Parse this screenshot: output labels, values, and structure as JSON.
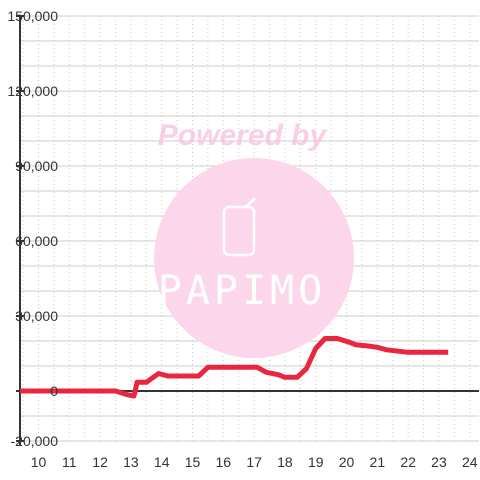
{
  "watermark": {
    "text": "Powered by",
    "brand": "PAPIMO"
  },
  "colors": {
    "line": "#e8263f",
    "axis": "#333333",
    "grid": "#cccccc",
    "watermark_circle": "#fcd6ea"
  },
  "chart_data": {
    "type": "line",
    "title": "",
    "xlabel": "",
    "ylabel": "",
    "xlim": [
      9.4,
      24.3
    ],
    "ylim": [
      -20000,
      150000
    ],
    "grid": true,
    "x_ticks": [
      10,
      11,
      12,
      13,
      14,
      15,
      16,
      17,
      18,
      19,
      20,
      21,
      22,
      23,
      24
    ],
    "y_ticks": [
      -20000,
      0,
      30000,
      60000,
      90000,
      120000,
      150000
    ],
    "x_tick_labels": [
      "10",
      "11",
      "12",
      "13",
      "14",
      "15",
      "16",
      "17",
      "18",
      "19",
      "20",
      "21",
      "22",
      "23",
      "24"
    ],
    "y_tick_labels": [
      "-20,000",
      "0",
      "30,000",
      "60,000",
      "90,000",
      "120,000",
      "150,000"
    ],
    "series": [
      {
        "x": [
          9.4,
          12.5,
          12.9,
          13.1,
          13.2,
          13.5,
          13.9,
          14.2,
          14.5,
          14.9,
          15.2,
          15.5,
          15.9,
          16.5,
          17.1,
          17.4,
          17.8,
          18.0,
          18.4,
          18.7,
          19.0,
          19.3,
          19.7,
          20.1,
          20.3,
          20.7,
          21.0,
          21.3,
          22.0,
          22.8,
          23.3
        ],
        "y": [
          0,
          0,
          -1500,
          -2000,
          3500,
          3500,
          7000,
          6000,
          6000,
          6000,
          6000,
          9500,
          9500,
          9500,
          9500,
          7500,
          6500,
          5500,
          5500,
          9000,
          17000,
          21000,
          21000,
          19500,
          18500,
          18000,
          17500,
          16500,
          15500,
          15500,
          15500
        ]
      }
    ]
  }
}
